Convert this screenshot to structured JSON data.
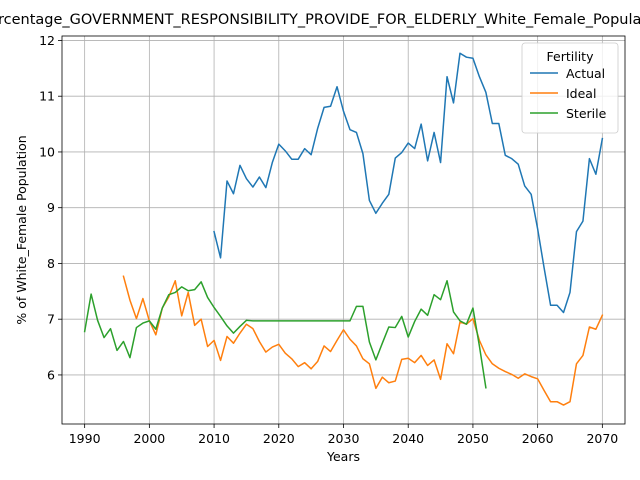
{
  "chart_data": {
    "type": "line",
    "title": "Percentage_GOVERNMENT_RESPONSIBILITY_PROVIDE_FOR_ELDERLY_White_Female_Population",
    "xlabel": "Years",
    "ylabel": "% of White_Female Population",
    "xlim": [
      1986.5,
      2073.5
    ],
    "ylim": [
      5.12,
      12.08
    ],
    "x_ticks": [
      1990,
      2000,
      2010,
      2020,
      2030,
      2040,
      2050,
      2060,
      2070
    ],
    "y_ticks": [
      6,
      7,
      8,
      9,
      10,
      11,
      12
    ],
    "grid": true,
    "legend": {
      "title": "Fertility",
      "placement": "top-right"
    },
    "series": [
      {
        "name": "Actual",
        "color": "#1f77b4",
        "x": [
          2010,
          2011,
          2012,
          2013,
          2014,
          2015,
          2016,
          2017,
          2018,
          2019,
          2020,
          2021,
          2022,
          2023,
          2024,
          2025,
          2026,
          2027,
          2028,
          2029,
          2030,
          2031,
          2032,
          2033,
          2034,
          2035,
          2036,
          2037,
          2038,
          2039,
          2040,
          2041,
          2042,
          2043,
          2044,
          2045,
          2046,
          2047,
          2048,
          2049,
          2050,
          2051,
          2052,
          2053,
          2054,
          2055,
          2056,
          2057,
          2058,
          2059,
          2060,
          2061,
          2062,
          2063,
          2064,
          2065,
          2066,
          2067,
          2068,
          2069,
          2070
        ],
        "values": [
          8.57,
          8.1,
          9.48,
          9.25,
          9.76,
          9.52,
          9.37,
          9.55,
          9.36,
          9.81,
          10.14,
          10.02,
          9.87,
          9.87,
          10.06,
          9.95,
          10.42,
          10.8,
          10.82,
          11.17,
          10.73,
          10.4,
          10.35,
          9.97,
          9.13,
          8.9,
          9.08,
          9.24,
          9.89,
          9.99,
          10.16,
          10.06,
          10.5,
          9.84,
          10.35,
          9.81,
          11.35,
          10.88,
          11.77,
          11.7,
          11.68,
          11.35,
          11.07,
          10.51,
          10.51,
          9.94,
          9.88,
          9.78,
          9.39,
          9.24,
          8.62,
          7.92,
          7.25,
          7.25,
          7.12,
          7.48,
          8.57,
          8.76,
          9.88,
          9.6,
          10.24
        ]
      },
      {
        "name": "Ideal",
        "color": "#ff7f0e",
        "x": [
          1996,
          1997,
          1998,
          1999,
          2000,
          2001,
          2002,
          2003,
          2004,
          2005,
          2006,
          2007,
          2008,
          2009,
          2010,
          2011,
          2012,
          2013,
          2014,
          2015,
          2016,
          2017,
          2018,
          2019,
          2020,
          2021,
          2022,
          2023,
          2024,
          2025,
          2026,
          2027,
          2028,
          2029,
          2030,
          2031,
          2032,
          2033,
          2034,
          2035,
          2036,
          2037,
          2038,
          2039,
          2040,
          2041,
          2042,
          2043,
          2044,
          2045,
          2046,
          2047,
          2048,
          2049,
          2050,
          2051,
          2052,
          2053,
          2054,
          2055,
          2056,
          2057,
          2058,
          2059,
          2060,
          2061,
          2062,
          2063,
          2064,
          2065,
          2066,
          2067,
          2068,
          2069,
          2070
        ],
        "values": [
          7.77,
          7.34,
          7.01,
          7.37,
          6.97,
          6.72,
          7.2,
          7.4,
          7.69,
          7.06,
          7.48,
          6.89,
          7.0,
          6.51,
          6.62,
          6.26,
          6.69,
          6.57,
          6.75,
          6.91,
          6.83,
          6.6,
          6.41,
          6.5,
          6.55,
          6.39,
          6.29,
          6.15,
          6.22,
          6.11,
          6.24,
          6.52,
          6.42,
          6.62,
          6.81,
          6.64,
          6.52,
          6.29,
          6.2,
          5.76,
          5.96,
          5.86,
          5.89,
          6.28,
          6.3,
          6.22,
          6.35,
          6.17,
          6.27,
          5.92,
          6.56,
          6.38,
          6.95,
          6.91,
          7.01,
          6.62,
          6.36,
          6.2,
          6.12,
          6.06,
          6.01,
          5.94,
          6.02,
          5.97,
          5.93,
          5.72,
          5.52,
          5.52,
          5.46,
          5.52,
          6.2,
          6.35,
          6.86,
          6.82,
          7.07
        ]
      },
      {
        "name": "Sterile",
        "color": "#2ca02c",
        "x": [
          1990,
          1991,
          1992,
          1993,
          1994,
          1995,
          1996,
          1997,
          1998,
          1999,
          2000,
          2001,
          2002,
          2003,
          2004,
          2005,
          2006,
          2007,
          2008,
          2009,
          2010,
          2011,
          2012,
          2013,
          2014,
          2015,
          2016,
          2017,
          2018,
          2019,
          2020,
          2021,
          2022,
          2023,
          2024,
          2025,
          2026,
          2027,
          2028,
          2029,
          2030,
          2031,
          2032,
          2033,
          2034,
          2035,
          2036,
          2037,
          2038,
          2039,
          2040,
          2041,
          2042,
          2043,
          2044,
          2045,
          2046,
          2047,
          2048,
          2049,
          2050,
          2051,
          2052
        ],
        "values": [
          6.78,
          7.45,
          6.98,
          6.67,
          6.83,
          6.44,
          6.6,
          6.31,
          6.85,
          6.93,
          6.97,
          6.82,
          7.2,
          7.44,
          7.48,
          7.58,
          7.51,
          7.53,
          7.67,
          7.39,
          7.21,
          7.05,
          6.88,
          6.75,
          6.87,
          6.98,
          6.97,
          6.97,
          6.97,
          6.97,
          6.97,
          6.97,
          6.97,
          6.97,
          6.97,
          6.97,
          6.97,
          6.97,
          6.97,
          6.97,
          6.97,
          6.97,
          7.23,
          7.23,
          6.59,
          6.27,
          6.57,
          6.86,
          6.85,
          7.05,
          6.68,
          6.96,
          7.18,
          7.07,
          7.44,
          7.35,
          7.69,
          7.13,
          6.97,
          6.91,
          7.2,
          6.52,
          5.77
        ]
      }
    ]
  }
}
